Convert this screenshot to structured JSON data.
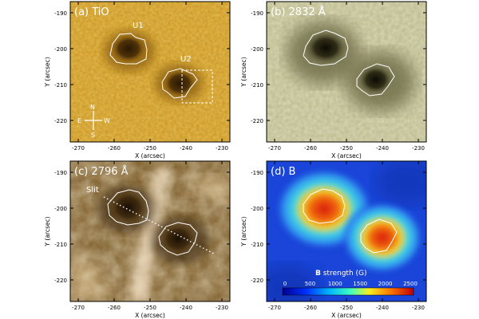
{
  "panels": [
    {
      "label": "(a) TiO",
      "spot_labels": [
        "U1",
        "U2"
      ],
      "compass": {
        "n": "N",
        "s": "S",
        "e": "E",
        "w": "W"
      },
      "colors": {
        "bg": "#c9941f",
        "mid": "#b07a12",
        "dark": "#3a2404",
        "light": "#e8b94a"
      }
    },
    {
      "label": "(b) 2832 Å",
      "colors": {
        "bg": "#b9b889",
        "mid": "#8d8a5c",
        "dark": "#121006",
        "light": "#e3e2c2"
      }
    },
    {
      "label": "(c) 2796 Å",
      "slit_label": "Slit",
      "colors": {
        "bg": "#7a5a26",
        "mid": "#5a3e14",
        "dark": "#1e1205",
        "light": "#f3e1b8"
      }
    },
    {
      "label": "(d) B",
      "colorbar": {
        "title_bold": "B",
        "title_rest": " strength (G)",
        "ticks": [
          "0",
          "500",
          "1000",
          "1500",
          "2000",
          "2500"
        ]
      },
      "colors": {
        "bg": "#1a45d8",
        "ring": "#31c7e6",
        "core": "#d21a0c"
      }
    }
  ],
  "axes": {
    "xlabel": "X (arcsec)",
    "ylabel": "Y (arcsec)",
    "x_ticks": [
      "-270",
      "-260",
      "-250",
      "-240",
      "-230"
    ],
    "y_ticks": [
      "-190",
      "-200",
      "-210",
      "-220"
    ]
  }
}
